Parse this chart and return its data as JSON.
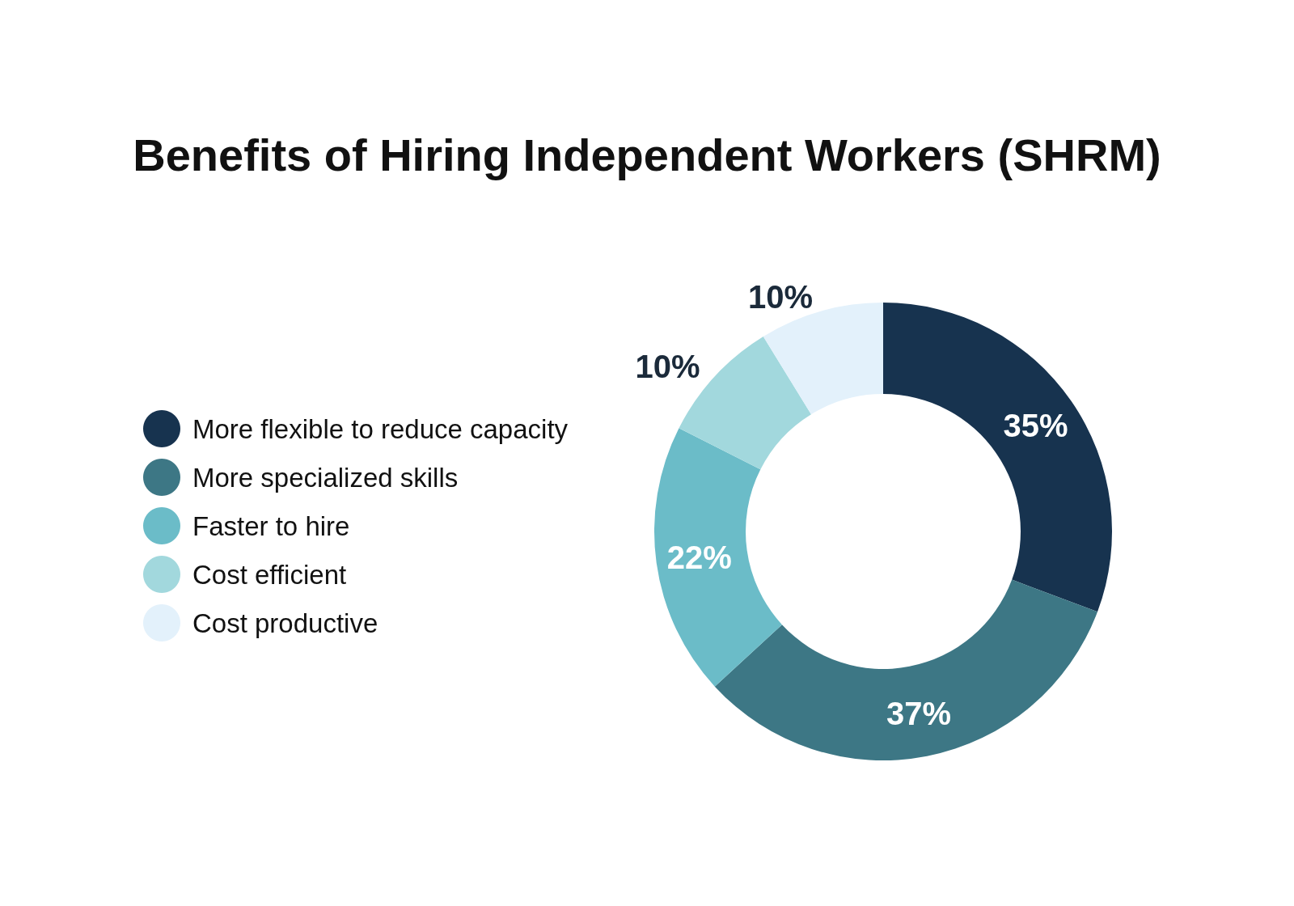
{
  "chart_data": {
    "type": "donut",
    "title": "Benefits of Hiring Independent Workers (SHRM)",
    "categories": [
      "More flexible to reduce capacity",
      "More specialized skills",
      "Faster to hire",
      "Cost efficient",
      "Cost productive"
    ],
    "values": [
      35,
      37,
      22,
      10,
      10
    ],
    "colors": [
      "#17334f",
      "#3d7785",
      "#6bbcc8",
      "#a2d8dd",
      "#e3f1fb"
    ],
    "value_labels": [
      "35%",
      "37%",
      "22%",
      "10%",
      "10%"
    ],
    "legend": "left"
  }
}
